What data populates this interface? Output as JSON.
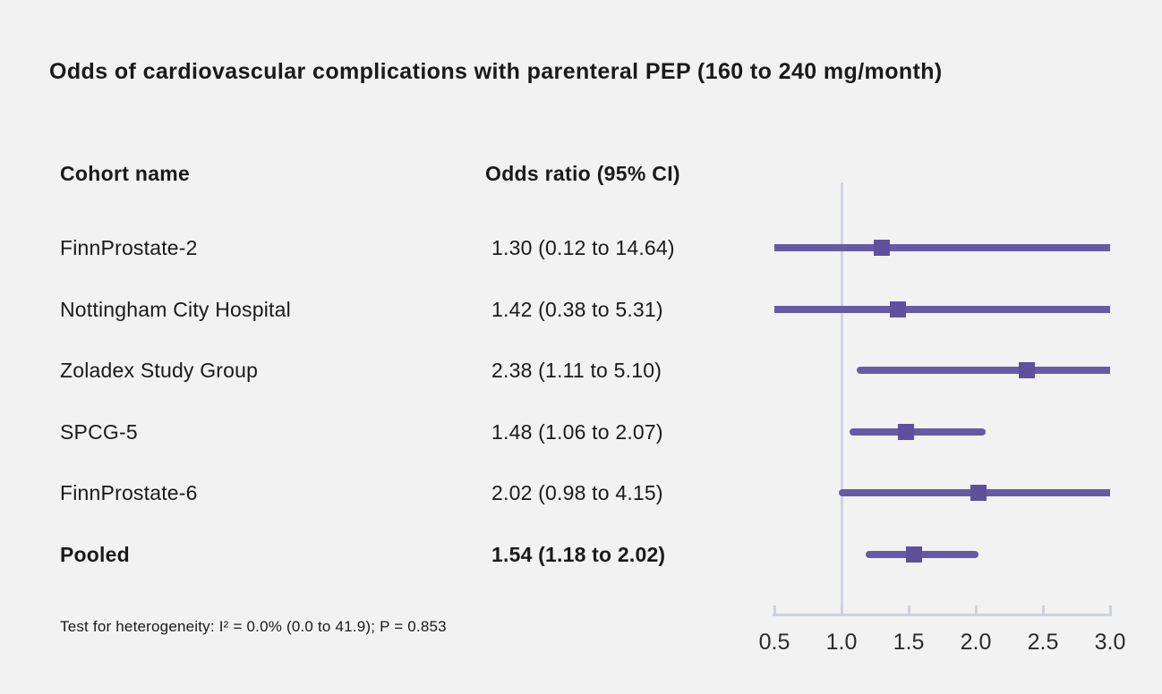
{
  "columns": {
    "cohort": "Cohort name",
    "odds_ratio": "Odds ratio (95% CI)"
  },
  "colors": {
    "background": "#f2f2f2",
    "text": "#1a1a1a",
    "ci_line": "#675aa4",
    "marker": "#5e509c",
    "axis": "#cdd3dc",
    "reference_line": "#d2d6df",
    "tick_label": "#2b2b2b"
  },
  "chart_data": {
    "type": "forest",
    "title": "Odds of cardiovascular complications with parenteral PEP (160 to 240 mg/month)",
    "xlim": [
      0.5,
      3.0
    ],
    "reference_value": 1.0,
    "x_ticks": [
      {
        "label": "0.5",
        "value": 0.5
      },
      {
        "label": "1.0",
        "value": 1.0
      },
      {
        "label": "1.5",
        "value": 1.5
      },
      {
        "label": "2.0",
        "value": 2.0
      },
      {
        "label": "2.5",
        "value": 2.5
      },
      {
        "label": "3.0",
        "value": 3.0
      }
    ],
    "rows": [
      {
        "cohort": "FinnProstate-2",
        "or_label": "1.30 (0.12 to 14.64)",
        "estimate": 1.3,
        "ci_low": 0.12,
        "ci_high": 14.64,
        "bold": false
      },
      {
        "cohort": "Nottingham City Hospital",
        "or_label": "1.42 (0.38 to 5.31)",
        "estimate": 1.42,
        "ci_low": 0.38,
        "ci_high": 5.31,
        "bold": false
      },
      {
        "cohort": "Zoladex Study Group",
        "or_label": "2.38 (1.11 to 5.10)",
        "estimate": 2.38,
        "ci_low": 1.11,
        "ci_high": 5.1,
        "bold": false
      },
      {
        "cohort": "SPCG-5",
        "or_label": "1.48 (1.06 to 2.07)",
        "estimate": 1.48,
        "ci_low": 1.06,
        "ci_high": 2.07,
        "bold": false
      },
      {
        "cohort": "FinnProstate-6",
        "or_label": "2.02 (0.98 to 4.15)",
        "estimate": 2.02,
        "ci_low": 0.98,
        "ci_high": 4.15,
        "bold": false
      },
      {
        "cohort": "Pooled",
        "or_label": "1.54 (1.18 to 2.02)",
        "estimate": 1.54,
        "ci_low": 1.18,
        "ci_high": 2.02,
        "bold": true
      }
    ],
    "heterogeneity": "Test for heterogeneity: I² = 0.0% (0.0 to 41.9); P = 0.853",
    "legend": null,
    "grid": false
  }
}
